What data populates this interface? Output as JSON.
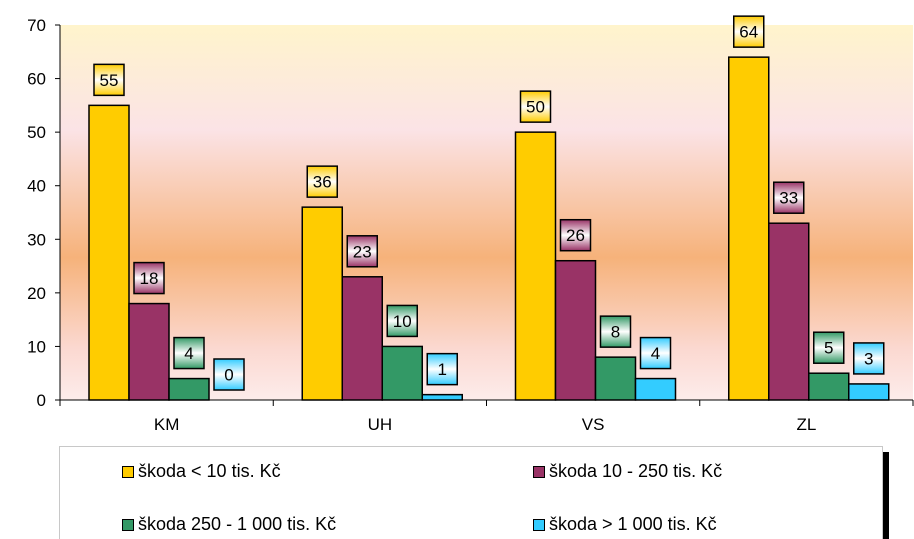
{
  "chart_data": {
    "type": "bar",
    "categories": [
      "KM",
      "UH",
      "VS",
      "ZL"
    ],
    "series": [
      {
        "name": "škoda < 10 tis. Kč",
        "values": [
          55,
          36,
          50,
          64
        ],
        "color": "#ffcc00"
      },
      {
        "name": "škoda 10 - 250 tis. Kč",
        "values": [
          18,
          23,
          26,
          33
        ],
        "color": "#993366"
      },
      {
        "name": "škoda 250 - 1 000 tis. Kč",
        "values": [
          4,
          10,
          8,
          5
        ],
        "color": "#339966"
      },
      {
        "name": "škoda > 1 000 tis. Kč",
        "values": [
          0,
          1,
          4,
          3
        ],
        "color": "#33ccff"
      }
    ],
    "ylim": [
      0,
      70
    ],
    "yticks": [
      "0",
      "10",
      "20",
      "30",
      "40",
      "50",
      "60",
      "70"
    ],
    "title": "",
    "xlabel": "",
    "ylabel": "",
    "legend": "bottom",
    "grid": false,
    "data_labels": true
  }
}
